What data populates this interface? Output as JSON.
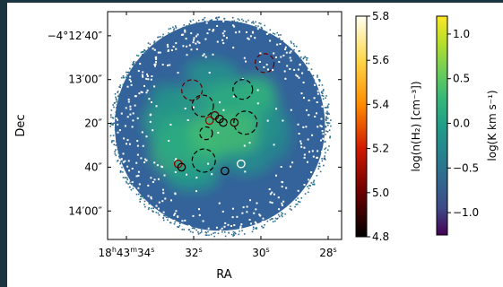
{
  "chart_data": {
    "type": "heatmap",
    "xlabel": "RA",
    "ylabel": "Dec",
    "x_ticks": [
      {
        "label_parts": [
          "18",
          "h",
          "43",
          "m",
          "34",
          "s"
        ],
        "ra_sec": 34
      },
      {
        "label_parts": [
          "32",
          "s"
        ],
        "ra_sec": 32
      },
      {
        "label_parts": [
          "30",
          "s"
        ],
        "ra_sec": 30
      },
      {
        "label_parts": [
          "28",
          "s"
        ],
        "ra_sec": 28
      }
    ],
    "y_ticks": [
      {
        "label": "−4°12′40″",
        "dec_arcsec": -40
      },
      {
        "label": "13′00″",
        "dec_arcsec": -60
      },
      {
        "label": "20″",
        "dec_arcsec": -80
      },
      {
        "label": "40″",
        "dec_arcsec": -100
      },
      {
        "label": "14′00″",
        "dec_arcsec": -120
      }
    ],
    "colorbar_density": {
      "label": "log(n(H₂) [cm⁻³])",
      "range": [
        4.8,
        5.8
      ],
      "ticks": [
        "4.8",
        "5.0",
        "5.2",
        "5.4",
        "5.6",
        "5.8"
      ],
      "colormap": [
        "#000000",
        "#6b0000",
        "#d01a00",
        "#ff8c00",
        "#ffd84a",
        "#fffff2"
      ]
    },
    "colorbar_intensity": {
      "label": "log(K km s⁻¹)",
      "range": [
        -1.25,
        1.2
      ],
      "ticks": [
        "−1.0",
        "−0.5",
        "0.0",
        "0.5",
        "1.0"
      ],
      "colormap": [
        "#440154",
        "#3e4a89",
        "#31688e",
        "#26828e",
        "#1f9e89",
        "#35b779",
        "#6ece58",
        "#b5de2b",
        "#fde725"
      ]
    },
    "map": {
      "ra_sec_range": [
        34.56,
        27.6
      ],
      "dec_arcsec_range": [
        -29,
        -133
      ],
      "mask_center": {
        "ra_sec": 31.22,
        "dec_arcsec": -81
      },
      "mask_radius_arcsec": 48
    },
    "dense_cores": [
      {
        "ra_sec": 32.46,
        "dec_arcsec": -98.5,
        "log_n": 5.05
      },
      {
        "ra_sec": 32.36,
        "dec_arcsec": -100,
        "log_n": 4.8
      },
      {
        "ra_sec": 31.53,
        "dec_arcsec": -78.7,
        "log_n": 5.1
      },
      {
        "ra_sec": 31.37,
        "dec_arcsec": -76.4,
        "log_n": 4.95
      },
      {
        "ra_sec": 31.23,
        "dec_arcsec": -78,
        "log_n": 4.85
      },
      {
        "ra_sec": 31.12,
        "dec_arcsec": -79.6,
        "log_n": 4.8
      },
      {
        "ra_sec": 30.79,
        "dec_arcsec": -79.6,
        "log_n": 4.9
      },
      {
        "ra_sec": 31.07,
        "dec_arcsec": -101.7,
        "log_n": 4.8
      },
      {
        "ra_sec": 30.59,
        "dec_arcsec": -98.5,
        "log_n": 5.8
      }
    ],
    "clumps": [
      {
        "ra_sec": 32.05,
        "dec_arcsec": -64.8,
        "radius_arcsec": 4.7,
        "log_n": 4.98
      },
      {
        "ra_sec": 31.73,
        "dec_arcsec": -72,
        "radius_arcsec": 4.9,
        "log_n": 4.85
      },
      {
        "ra_sec": 31.63,
        "dec_arcsec": -84.5,
        "radius_arcsec": 2.9,
        "log_n": 4.8
      },
      {
        "ra_sec": 31.7,
        "dec_arcsec": -97,
        "radius_arcsec": 5.3,
        "log_n": 4.8
      },
      {
        "ra_sec": 30.54,
        "dec_arcsec": -64.5,
        "radius_arcsec": 4.5,
        "log_n": 4.8
      },
      {
        "ra_sec": 30.46,
        "dec_arcsec": -79.7,
        "radius_arcsec": 5.3,
        "log_n": 4.8
      },
      {
        "ra_sec": 29.89,
        "dec_arcsec": -52.5,
        "radius_arcsec": 4.3,
        "log_n": 4.98
      }
    ]
  }
}
